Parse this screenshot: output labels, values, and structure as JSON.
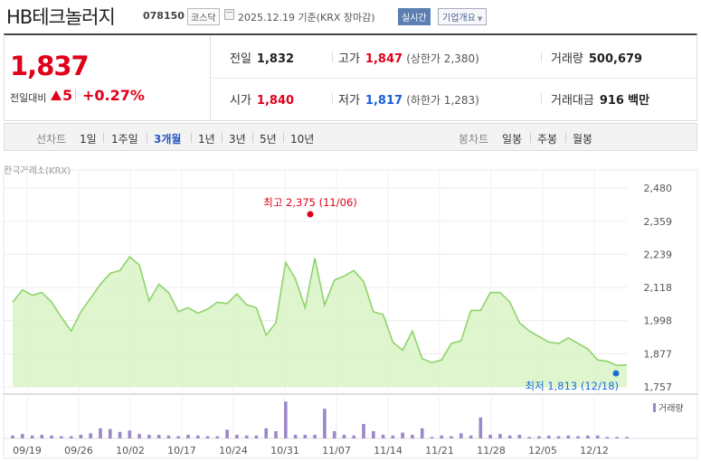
{
  "header": {
    "name": "HB테크놀러지",
    "code": "078150",
    "market": "코스닥",
    "date": "2025.12.19",
    "basis": "기준(KRX 장마감)",
    "realtime": "실시간",
    "company_info": "기업개요"
  },
  "quote": {
    "price": "1,837",
    "diff_label": "전일대비",
    "diff": "5",
    "pct": "+0.27%",
    "prev_label": "전일",
    "prev": "1,832",
    "high_label": "고가",
    "high": "1,847",
    "upper_limit": "(상한가 2,380)",
    "volume_label": "거래량",
    "volume": "500,679",
    "open_label": "시가",
    "open": "1,840",
    "low_label": "저가",
    "low": "1,817",
    "lower_limit": "(하한가 1,283)",
    "amount_label": "거래대금",
    "amount": "916",
    "amount_unit": "백만"
  },
  "tabs": {
    "line_label": "선차트",
    "periods": [
      "1일",
      "1주일",
      "3개월",
      "1년",
      "3년",
      "5년",
      "10년"
    ],
    "active": "3개월",
    "candle_label": "봉차트",
    "candles": [
      "일봉",
      "주봉",
      "월봉"
    ]
  },
  "chart_data": {
    "type": "area",
    "exchange_label": "한국거래소(KRX)",
    "ylim": [
      1757,
      2480
    ],
    "yticks": [
      "2,480",
      "2,359",
      "2,239",
      "2,118",
      "1,998",
      "1,877",
      "1,757"
    ],
    "x_labels": [
      "09/19",
      "09/26",
      "10/02",
      "10/17",
      "10/24",
      "10/31",
      "11/07",
      "11/14",
      "11/21",
      "11/28",
      "12/05",
      "12/12"
    ],
    "high_annotation": "최고 2,375 (11/06)",
    "low_annotation": "최저 1,813 (12/18)",
    "volume_legend": "거래량",
    "prices": [
      2065,
      2110,
      2090,
      2100,
      2065,
      2010,
      1960,
      2030,
      2080,
      2130,
      2170,
      2180,
      2230,
      2200,
      2070,
      2130,
      2100,
      2030,
      2045,
      2025,
      2040,
      2065,
      2060,
      2095,
      2055,
      2045,
      1945,
      1990,
      2210,
      2150,
      2045,
      2225,
      2055,
      2145,
      2160,
      2180,
      2140,
      2030,
      2020,
      1920,
      1890,
      1960,
      1860,
      1845,
      1855,
      1915,
      1925,
      2035,
      2035,
      2100,
      2100,
      2065,
      1990,
      1960,
      1940,
      1920,
      1915,
      1935,
      1915,
      1895,
      1855,
      1850,
      1835,
      1837
    ],
    "volumes": [
      0.04,
      0.06,
      0.04,
      0.05,
      0.04,
      0.03,
      0.03,
      0.05,
      0.07,
      0.14,
      0.13,
      0.09,
      0.11,
      0.06,
      0.05,
      0.05,
      0.04,
      0.03,
      0.05,
      0.04,
      0.03,
      0.03,
      0.12,
      0.05,
      0.04,
      0.04,
      0.14,
      0.1,
      0.51,
      0.05,
      0.05,
      0.05,
      0.41,
      0.1,
      0.05,
      0.04,
      0.2,
      0.1,
      0.05,
      0.04,
      0.08,
      0.05,
      0.14,
      0.02,
      0.04,
      0.03,
      0.07,
      0.04,
      0.29,
      0.05,
      0.06,
      0.04,
      0.05,
      0.02,
      0.03,
      0.04,
      0.03,
      0.04,
      0.03,
      0.04,
      0.04,
      0.02,
      0.02,
      0.02
    ],
    "colors": {
      "line": "#8fd36b",
      "fill": "#d8f3c4",
      "high": "#e0001a",
      "low": "#1a6fd6",
      "volume": "#9b87c9"
    }
  }
}
